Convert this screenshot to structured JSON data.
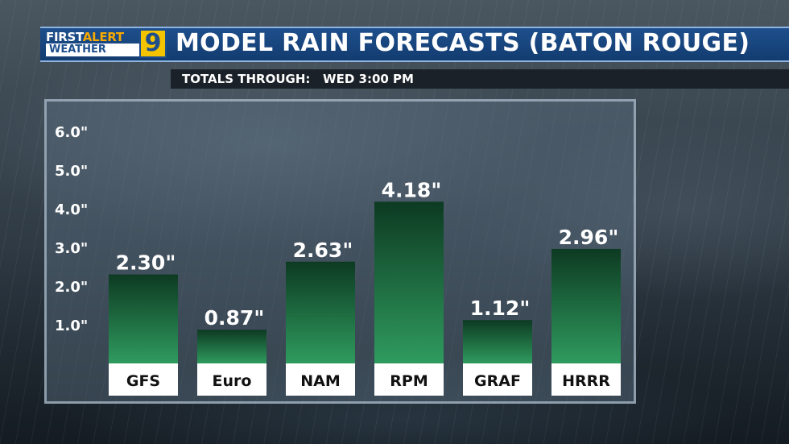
{
  "header": {
    "logo_first": "FIRST",
    "logo_alert": "ALERT",
    "logo_weather": "WEATHER",
    "logo_number": "9",
    "title": "MODEL RAIN FORECASTS (BATON ROUGE)",
    "subtitle": "TOTALS THROUGH:   WED 3:00 PM"
  },
  "colors": {
    "header_blue": "#1e4f8c",
    "logo_yellow": "#f5c400",
    "bar_top": "#0d3a22",
    "bar_bottom": "#2f9b5e"
  },
  "chart_data": {
    "type": "bar",
    "title": "MODEL RAIN FORECASTS (BATON ROUGE)",
    "subtitle": "TOTALS THROUGH:   WED 3:00 PM",
    "categories": [
      "GFS",
      "Euro",
      "NAM",
      "RPM",
      "GRAF",
      "HRRR"
    ],
    "values": [
      2.3,
      0.87,
      2.63,
      4.18,
      1.12,
      2.96
    ],
    "value_labels": [
      "2.30\"",
      "0.87\"",
      "2.63\"",
      "4.18\"",
      "1.12\"",
      "2.96\""
    ],
    "yticks": [
      1.0,
      2.0,
      3.0,
      4.0,
      5.0,
      6.0
    ],
    "ytick_labels": [
      "1.0\"",
      "2.0\"",
      "3.0\"",
      "4.0\"",
      "5.0\"",
      "6.0\""
    ],
    "ylim": [
      0,
      6
    ],
    "xlabel": "",
    "ylabel": "",
    "grid": false
  }
}
